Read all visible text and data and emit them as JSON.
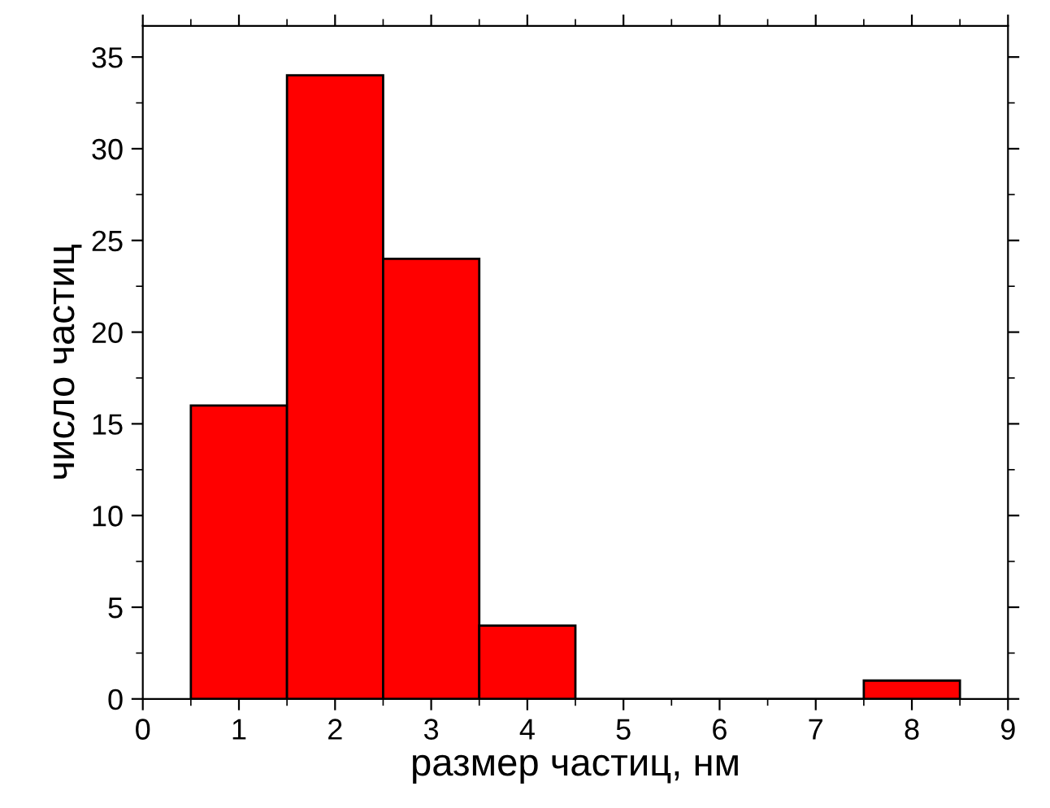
{
  "chart_data": {
    "type": "histogram",
    "xlabel": "размер частиц, нм",
    "ylabel": "число частиц",
    "bins": [
      0.5,
      1.5,
      2.5,
      3.5,
      4.5,
      5.5,
      6.5,
      7.5,
      8.5
    ],
    "values": [
      16,
      34,
      24,
      4,
      0,
      0,
      0,
      1
    ],
    "color": "#ff0000",
    "xlim": [
      0,
      9
    ],
    "xticks": [
      0,
      1,
      2,
      3,
      4,
      5,
      6,
      7,
      8,
      9
    ],
    "ylim": [
      0,
      36.7
    ],
    "yticks": [
      0,
      5,
      10,
      15,
      20,
      25,
      30,
      35
    ],
    "grid": false
  }
}
